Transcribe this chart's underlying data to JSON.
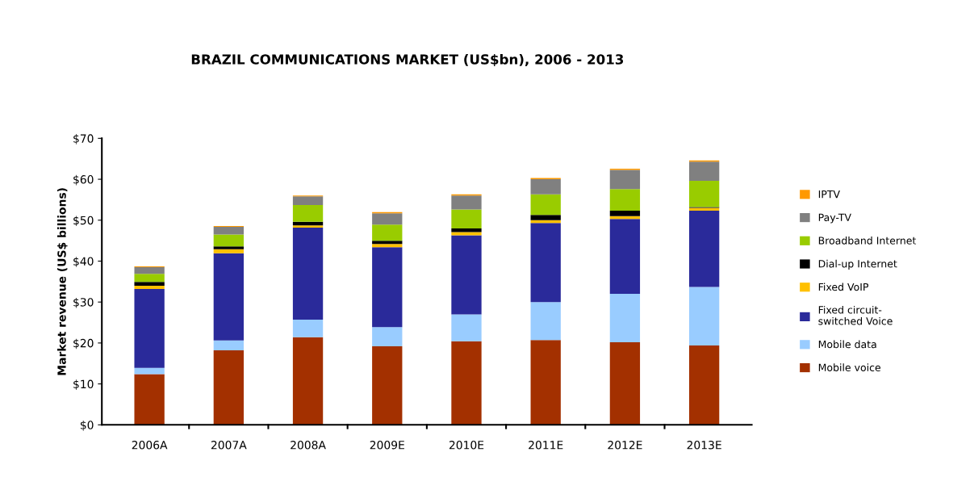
{
  "chart_data": {
    "type": "bar",
    "title": "BRAZIL COMMUNICATIONS MARKET (US$bn), 2006 - 2013",
    "ylabel": "Market revenue (US$ billions)",
    "categories": [
      "2006A",
      "2007A",
      "2008A",
      "2009E",
      "2010E",
      "2011E",
      "2012E",
      "2013E"
    ],
    "stacked": true,
    "legend": "right",
    "grid": false,
    "ylim": [
      0,
      70
    ],
    "yticks": [
      {
        "value": 0,
        "label": "$0"
      },
      {
        "value": 10,
        "label": "$10"
      },
      {
        "value": 20,
        "label": "$20"
      },
      {
        "value": 30,
        "label": "$30"
      },
      {
        "value": 40,
        "label": "$40"
      },
      {
        "value": 50,
        "label": "$50"
      },
      {
        "value": 60,
        "label": "$60"
      },
      {
        "value": 70,
        "label": "$70"
      }
    ],
    "series": [
      {
        "name": "Mobile voice",
        "color": "#a33000",
        "values": [
          12.4,
          18.2,
          21.4,
          19.2,
          20.4,
          20.7,
          20.2,
          19.4
        ]
      },
      {
        "name": "Mobile data",
        "color": "#99ccff",
        "values": [
          1.5,
          2.4,
          4.3,
          4.7,
          6.6,
          9.3,
          11.8,
          14.3
        ]
      },
      {
        "name": "Fixed circuit-\nswitched Voice",
        "color": "#2a2a9a",
        "values": [
          19.3,
          21.3,
          22.5,
          19.5,
          19.3,
          19.3,
          18.3,
          18.6
        ]
      },
      {
        "name": "Fixed VoIP",
        "color": "#ffc000",
        "values": [
          0.8,
          1.0,
          0.5,
          0.8,
          0.8,
          0.7,
          0.7,
          0.7
        ]
      },
      {
        "name": "Dial-up Internet",
        "color": "#000000",
        "values": [
          0.9,
          0.7,
          0.9,
          0.8,
          0.9,
          1.3,
          1.3,
          0.2
        ]
      },
      {
        "name": "Broadband Internet",
        "color": "#99cc00",
        "values": [
          2.0,
          2.9,
          4.1,
          3.9,
          4.6,
          5.0,
          5.3,
          6.4
        ]
      },
      {
        "name": "Pay-TV",
        "color": "#808080",
        "values": [
          1.6,
          1.9,
          2.1,
          2.8,
          3.4,
          3.7,
          4.7,
          4.7
        ]
      },
      {
        "name": "IPTV",
        "color": "#ff9900",
        "values": [
          0.2,
          0.2,
          0.2,
          0.3,
          0.3,
          0.3,
          0.3,
          0.3
        ]
      }
    ]
  }
}
